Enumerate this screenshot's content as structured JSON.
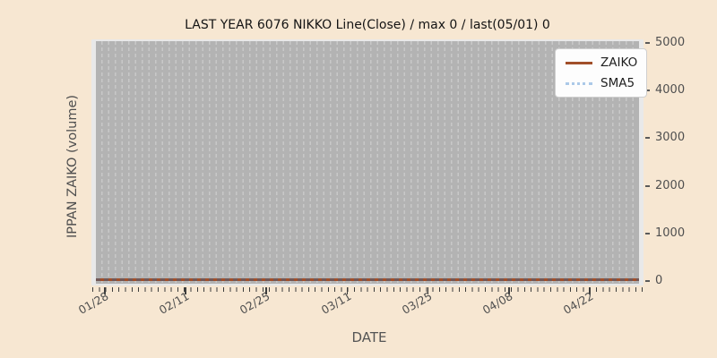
{
  "figure": {
    "title": "LAST YEAR 6076 NIKKO Line(Close) / max 0 / last(05/01) 0",
    "xlabel": "DATE",
    "ylabel": "IPPAN ZAIKO (volume)"
  },
  "legend": {
    "position": "upper-right",
    "items": [
      {
        "label": "ZAIKO",
        "style": "solid",
        "color": "#a14f2a"
      },
      {
        "label": "SMA5",
        "style": "dotted",
        "color": "#abc9e8"
      }
    ]
  },
  "chart_data": {
    "type": "line",
    "title": "LAST YEAR 6076 NIKKO Line(Close) / max 0 / last(05/01) 0",
    "xlabel": "DATE",
    "ylabel": "IPPAN ZAIKO (volume)",
    "x_tick_labels": [
      "01/28",
      "02/11",
      "02/25",
      "03/11",
      "03/25",
      "04/08",
      "04/22"
    ],
    "x_range": [
      "01/28",
      "05/01"
    ],
    "y_ticks": [
      0,
      1000,
      2000,
      3000,
      4000,
      5000
    ],
    "ylim": [
      0,
      5000
    ],
    "grid": "vertical dashed daily gridlines on gray plot background",
    "legend_position": "upper right",
    "series": [
      {
        "name": "ZAIKO",
        "style": "solid",
        "color": "#a14f2a",
        "constant_value": 0,
        "note": "flat line at 0 across entire date range"
      },
      {
        "name": "SMA5",
        "style": "dotted",
        "color": "#abc9e8",
        "constant_value": 0,
        "note": "flat dotted line at 0 overlapping ZAIKO"
      }
    ],
    "stats_from_title": {
      "max": 0,
      "last_date": "05/01",
      "last_value": 0
    }
  },
  "colors": {
    "figure_bg": "#f7e7d2",
    "plot_frame": "#e9e9e9",
    "plot_bg": "#b3b3b3",
    "gridline": "#c8c8c8",
    "zaiko": "#a14f2a",
    "sma5": "#abc9e8",
    "tick_text": "#4f4f4f",
    "title_text": "#141414"
  }
}
